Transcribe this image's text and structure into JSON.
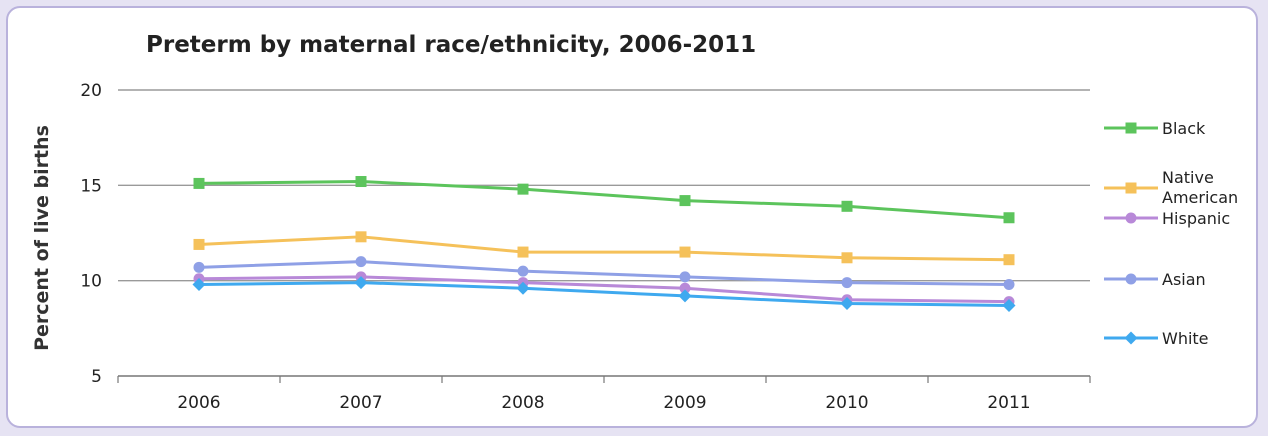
{
  "chart_data": {
    "type": "line",
    "title": "Preterm by maternal race/ethnicity, 2006-2011",
    "xlabel": "",
    "ylabel": "Percent of live births",
    "categories": [
      "2006",
      "2007",
      "2008",
      "2009",
      "2010",
      "2011"
    ],
    "ylim": [
      5,
      20
    ],
    "yticks": [
      5,
      10,
      15,
      20
    ],
    "grid": true,
    "legend_position": "right",
    "series": [
      {
        "name": "Black",
        "values": [
          15.1,
          15.2,
          14.8,
          14.2,
          13.9,
          13.3
        ],
        "color": "#5cc45c",
        "marker": "square"
      },
      {
        "name": "Native American",
        "values": [
          11.9,
          12.3,
          11.5,
          11.5,
          11.2,
          11.1
        ],
        "color": "#f5c15a",
        "marker": "square"
      },
      {
        "name": "Hispanic",
        "values": [
          10.1,
          10.2,
          9.9,
          9.6,
          9.0,
          8.9
        ],
        "color": "#b889d8",
        "marker": "circle"
      },
      {
        "name": "Asian",
        "values": [
          10.7,
          11.0,
          10.5,
          10.2,
          9.9,
          9.8
        ],
        "color": "#8fa0e6",
        "marker": "circle"
      },
      {
        "name": "White",
        "values": [
          9.8,
          9.9,
          9.6,
          9.2,
          8.8,
          8.7
        ],
        "color": "#3fa9ef",
        "marker": "diamond"
      }
    ]
  }
}
